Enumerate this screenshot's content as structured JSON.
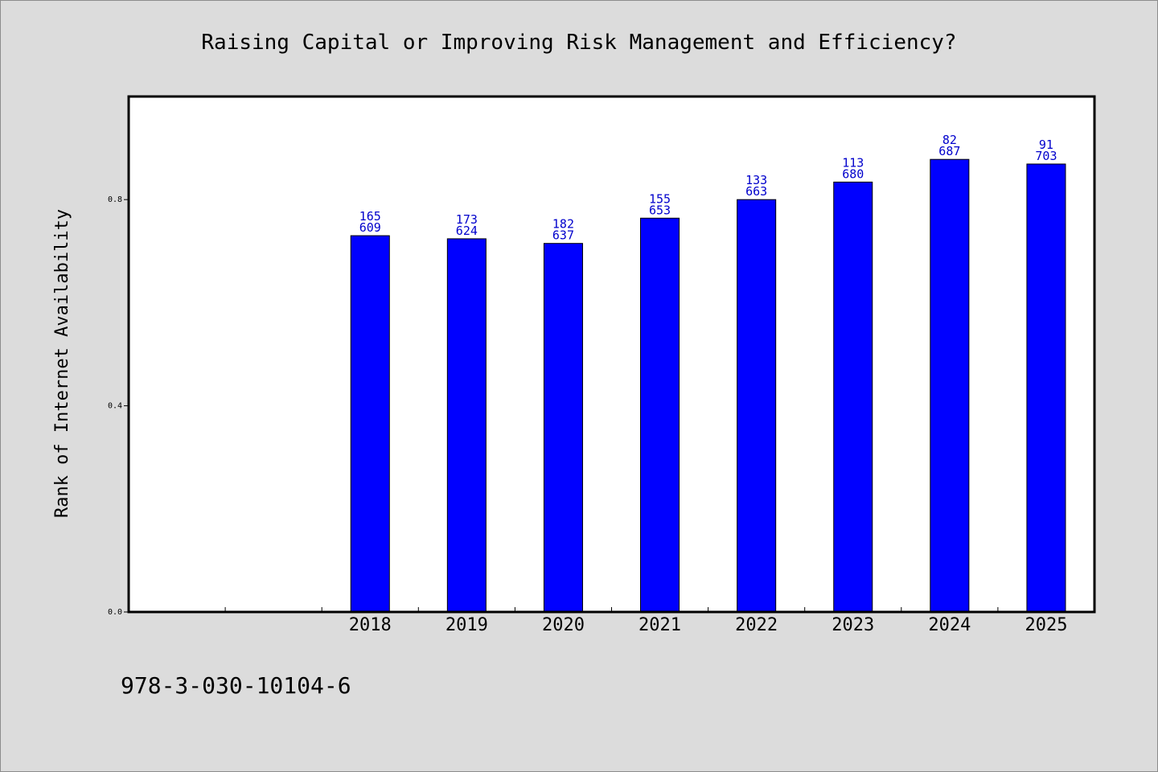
{
  "chart_data": {
    "type": "bar",
    "title": "Raising Capital or Improving Risk Management and Efficiency?",
    "ylabel": "Rank of Internet Availability",
    "xlabel": "",
    "ylim": [
      0,
      1.0
    ],
    "yticks": [
      "0.0",
      "0.4",
      "0.8"
    ],
    "ytick_values": [
      0.0,
      0.4,
      0.8
    ],
    "x_slots": 10,
    "first_category_slot": 2,
    "categories": [
      "2018",
      "2019",
      "2020",
      "2021",
      "2022",
      "2023",
      "2024",
      "2025"
    ],
    "values": [
      0.73,
      0.724,
      0.715,
      0.764,
      0.8,
      0.834,
      0.878,
      0.869
    ],
    "data_labels": [
      [
        "165",
        "609"
      ],
      [
        "173",
        "624"
      ],
      [
        "182",
        "637"
      ],
      [
        "155",
        "653"
      ],
      [
        "133",
        "663"
      ],
      [
        "113",
        "680"
      ],
      [
        "82",
        "687"
      ],
      [
        "91",
        "703"
      ]
    ],
    "bar_color": "#0000ff",
    "label_color": "#0000cc",
    "grid": false,
    "legend": "none"
  },
  "footer": {
    "isbn": "978-3-030-10104-6"
  }
}
